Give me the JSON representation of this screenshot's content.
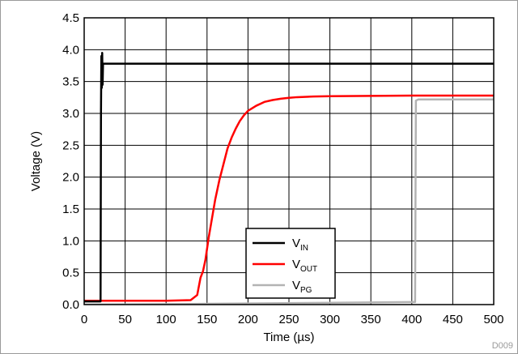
{
  "chart_data": {
    "type": "line",
    "title": "",
    "xlabel": "Time (µs)",
    "ylabel": "Voltage (V)",
    "xlim": [
      0,
      500
    ],
    "ylim": [
      0,
      4.5
    ],
    "x_ticks": [
      0,
      50,
      100,
      150,
      200,
      250,
      300,
      350,
      400,
      450,
      500
    ],
    "y_ticks": [
      "0.0",
      "0.5",
      "1.0",
      "1.5",
      "2.0",
      "2.5",
      "3.0",
      "3.5",
      "4.0",
      "4.5"
    ],
    "grid": true,
    "legend_position": "bottom-center",
    "series": [
      {
        "name": "V",
        "subscript": "IN",
        "color": "#000000",
        "x": [
          0,
          20,
          20.5,
          21,
          21.5,
          22,
          22.5,
          23,
          24,
          500
        ],
        "y": [
          0.05,
          0.05,
          3.0,
          3.9,
          3.4,
          3.95,
          3.45,
          3.78,
          3.78,
          3.78
        ]
      },
      {
        "name": "V",
        "subscript": "OUT",
        "color": "#ff0000",
        "x": [
          0,
          100,
          130,
          138,
          142,
          145,
          148,
          152,
          156,
          160,
          165,
          170,
          175,
          180,
          185,
          190,
          195,
          200,
          210,
          220,
          230,
          240,
          250,
          260,
          280,
          300,
          350,
          400,
          450,
          500
        ],
        "y": [
          0.06,
          0.06,
          0.07,
          0.15,
          0.42,
          0.52,
          0.7,
          1.05,
          1.35,
          1.65,
          1.95,
          2.2,
          2.45,
          2.62,
          2.76,
          2.88,
          2.97,
          3.04,
          3.12,
          3.18,
          3.21,
          3.23,
          3.245,
          3.255,
          3.265,
          3.27,
          3.275,
          3.28,
          3.28,
          3.28
        ]
      },
      {
        "name": "V",
        "subscript": "PG",
        "color": "#b3b3b3",
        "x": [
          0,
          130,
          404,
          405,
          408,
          500
        ],
        "y": [
          0.0,
          0.01,
          0.04,
          3.2,
          3.22,
          3.22
        ]
      }
    ]
  },
  "figure_id": "D009"
}
